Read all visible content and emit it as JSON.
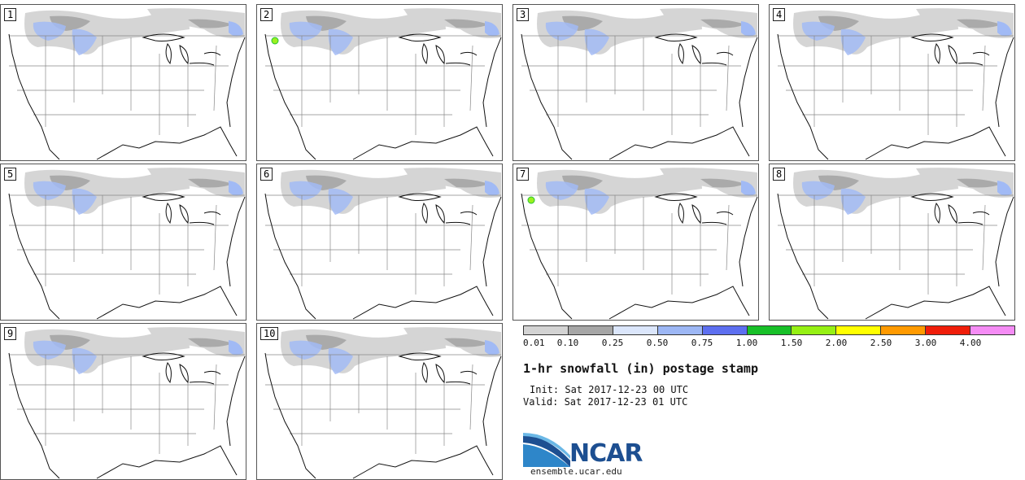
{
  "panels": [
    {
      "num": "1",
      "accent": "none"
    },
    {
      "num": "2",
      "accent": "green"
    },
    {
      "num": "3",
      "accent": "none"
    },
    {
      "num": "4",
      "accent": "none"
    },
    {
      "num": "5",
      "accent": "none"
    },
    {
      "num": "6",
      "accent": "none"
    },
    {
      "num": "7",
      "accent": "green"
    },
    {
      "num": "8",
      "accent": "none"
    },
    {
      "num": "9",
      "accent": "none"
    },
    {
      "num": "10",
      "accent": "none"
    }
  ],
  "colorbar": {
    "colors": [
      "#d3d3d3",
      "#a6a6a6",
      "#dbe6fb",
      "#9db7f5",
      "#5d6ff0",
      "#18c028",
      "#96f014",
      "#ffff00",
      "#ff9a00",
      "#f01e0a",
      "#f58cf5"
    ],
    "ticks": [
      "0.01",
      "0.10",
      "0.25",
      "0.50",
      "0.75",
      "1.00",
      "1.50",
      "2.00",
      "2.50",
      "3.00",
      "4.00"
    ]
  },
  "title": "1-hr snowfall (in) postage stamp",
  "init_line": "Init: Sat 2017-12-23 00 UTC",
  "valid_line": "Valid: Sat 2017-12-23 01 UTC",
  "logo_text": "NCAR",
  "url": "ensemble.ucar.edu"
}
